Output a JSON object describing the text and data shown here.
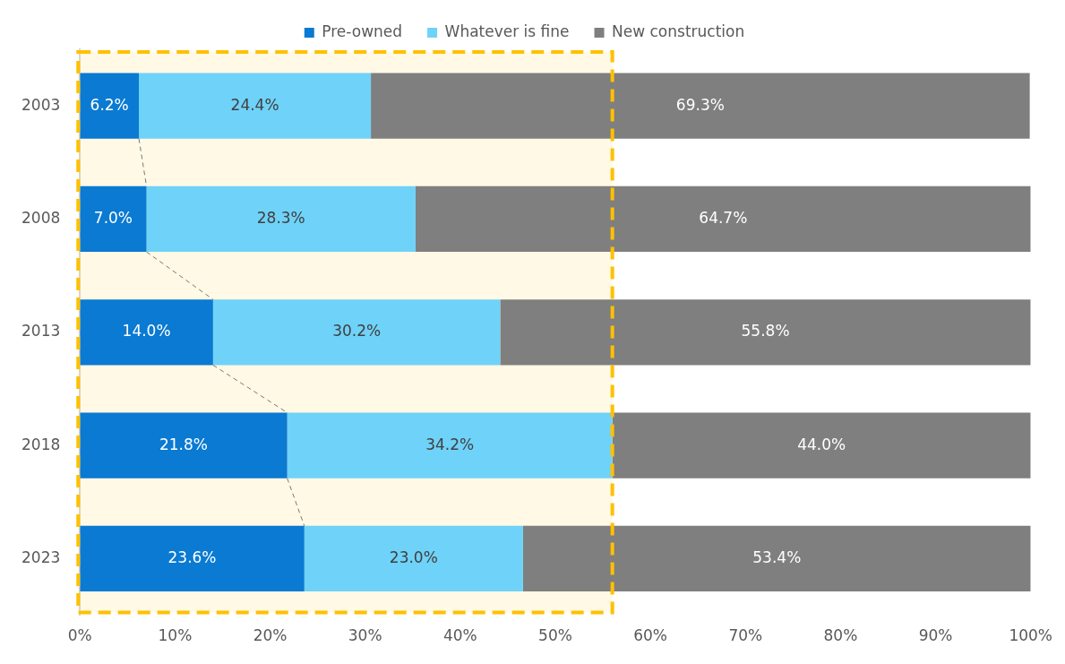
{
  "chart_data": {
    "type": "bar",
    "orientation": "horizontal",
    "stacked": true,
    "categories": [
      "2003",
      "2008",
      "2013",
      "2018",
      "2023"
    ],
    "series": [
      {
        "name": "Pre-owned",
        "color": "#0a7ad2",
        "values": [
          6.2,
          7.0,
          14.0,
          21.8,
          23.6
        ],
        "value_labels": [
          "6.2%",
          "7.0%",
          "14.0%",
          "21.8%",
          "23.6%"
        ]
      },
      {
        "name": "Whatever is fine",
        "color": "#6fd2f8",
        "values": [
          24.4,
          28.3,
          30.2,
          34.2,
          23.0
        ],
        "value_labels": [
          "24.4%",
          "28.3%",
          "30.2%",
          "34.2%",
          "23.0%"
        ]
      },
      {
        "name": "New construction",
        "color": "#7f7f7f",
        "values": [
          69.3,
          64.7,
          55.8,
          44.0,
          53.4
        ],
        "value_labels": [
          "69.3%",
          "64.7%",
          "55.8%",
          "44.0%",
          "53.4%"
        ]
      }
    ],
    "xlim": [
      0,
      100
    ],
    "xticks": [
      {
        "value": 0,
        "label": "0%"
      },
      {
        "value": 10,
        "label": "10%"
      },
      {
        "value": 20,
        "label": "20%"
      },
      {
        "value": 30,
        "label": "30%"
      },
      {
        "value": 40,
        "label": "40%"
      },
      {
        "value": 50,
        "label": "50%"
      },
      {
        "value": 60,
        "label": "60%"
      },
      {
        "value": 70,
        "label": "70%"
      },
      {
        "value": 80,
        "label": "80%"
      },
      {
        "value": 90,
        "label": "90%"
      },
      {
        "value": 100,
        "label": "100%"
      }
    ],
    "bands": [
      {
        "axis": "x",
        "from": 0,
        "to": 56,
        "color": "#ffc000"
      }
    ],
    "grid": false,
    "legend": "top"
  }
}
